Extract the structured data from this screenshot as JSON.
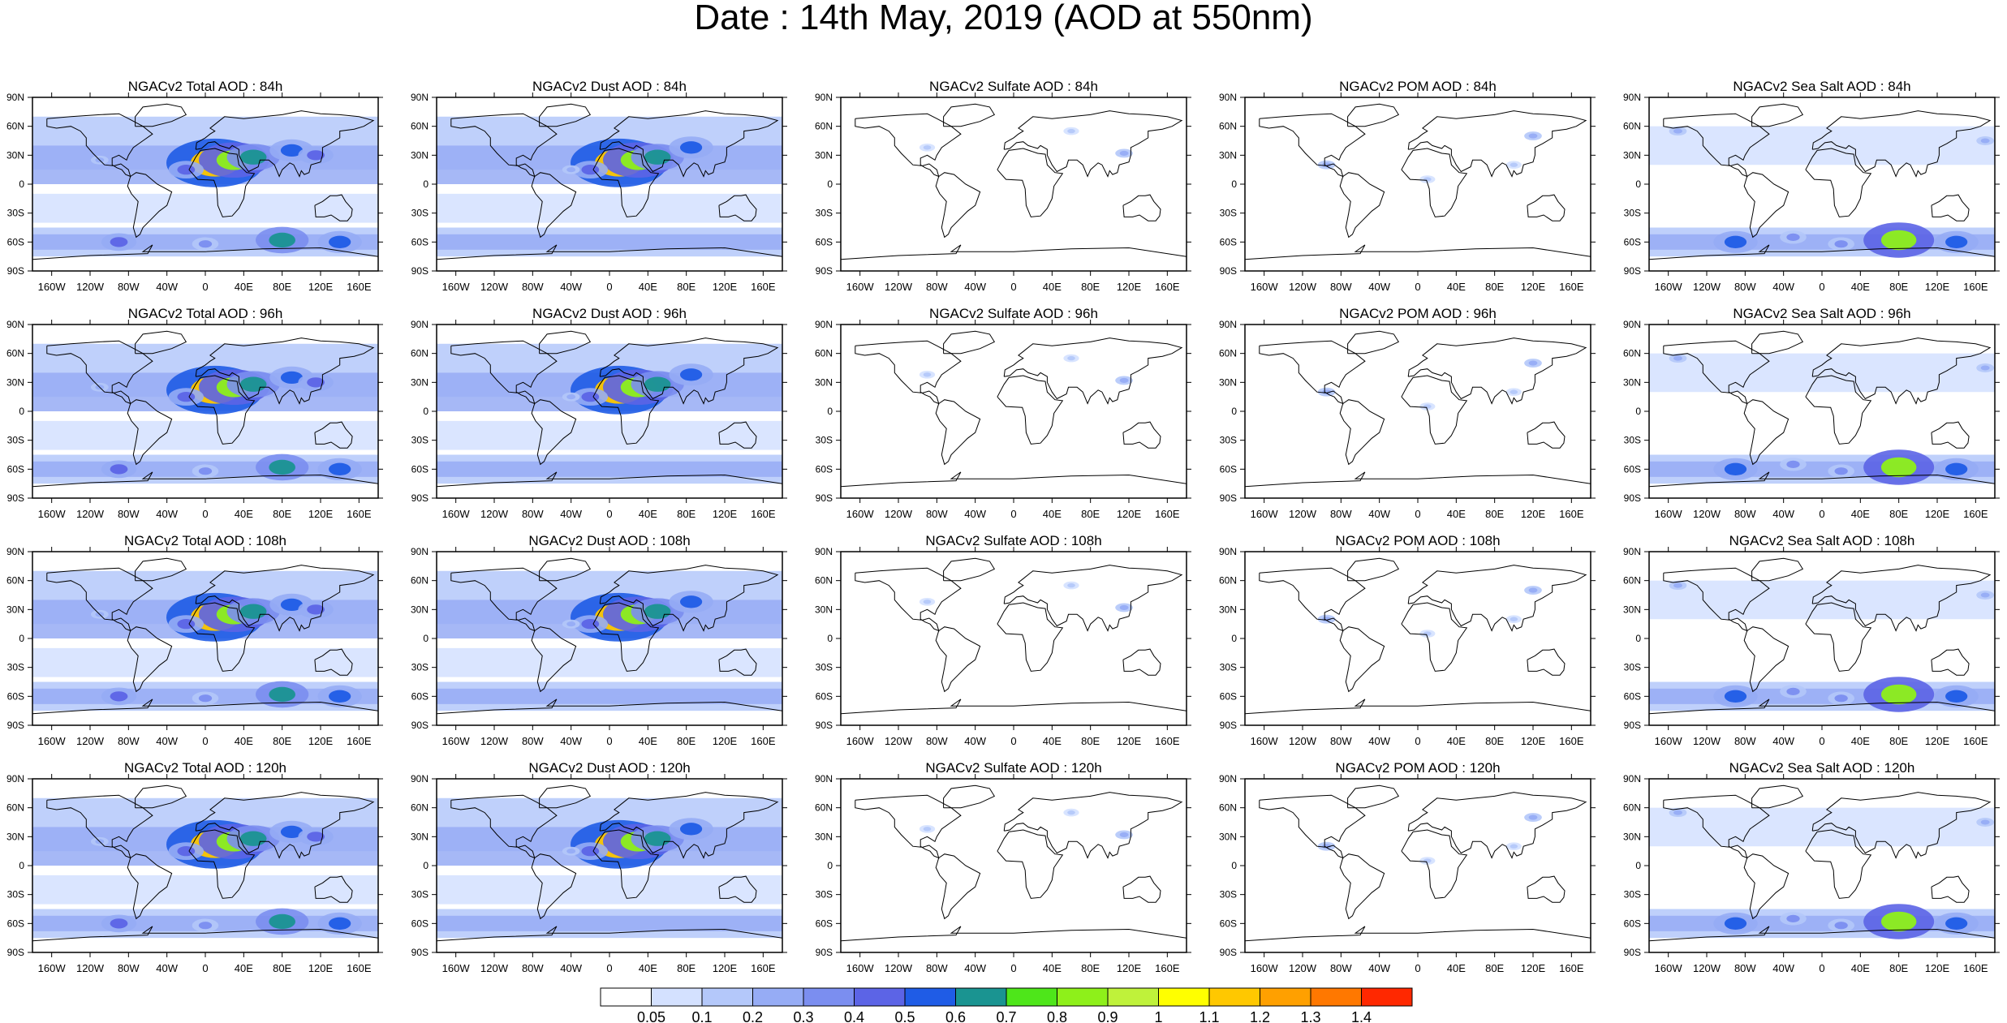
{
  "title": "Date : 14th May, 2019 (AOD at 550nm)",
  "x_ticks": [
    "160W",
    "120W",
    "80W",
    "40W",
    "0",
    "40E",
    "80E",
    "120E",
    "160E"
  ],
  "y_ticks": [
    "90N",
    "60N",
    "30N",
    "0",
    "30S",
    "60S",
    "90S"
  ],
  "colorbar": {
    "labels": [
      "0.05",
      "0.1",
      "0.2",
      "0.3",
      "0.4",
      "0.5",
      "0.6",
      "0.7",
      "0.8",
      "0.9",
      "1",
      "1.1",
      "1.2",
      "1.3",
      "1.4"
    ],
    "colors": [
      "#ffffff",
      "#d4e1ff",
      "#b4c8fa",
      "#96acf5",
      "#7b8ef0",
      "#5c64e6",
      "#1f5ce6",
      "#1a9491",
      "#4ee61a",
      "#8ef01a",
      "#bff23a",
      "#ffff00",
      "#ffc800",
      "#ffa000",
      "#ff7800",
      "#ff2800"
    ]
  },
  "chart_data": {
    "type": "heatmap",
    "variable": "AOD at 550nm",
    "rows": [
      "84h",
      "96h",
      "108h",
      "120h"
    ],
    "columns": [
      "Total",
      "Dust",
      "Sulfate",
      "POM",
      "Sea Salt"
    ],
    "panel_titles": [
      [
        "NGACv2 Total AOD : 84h",
        "NGACv2 Dust AOD : 84h",
        "NGACv2 Sulfate AOD : 84h",
        "NGACv2 POM AOD : 84h",
        "NGACv2 Sea Salt AOD : 84h"
      ],
      [
        "NGACv2 Total AOD : 96h",
        "NGACv2 Dust AOD : 96h",
        "NGACv2 Sulfate AOD : 96h",
        "NGACv2 POM AOD : 96h",
        "NGACv2 Sea Salt AOD : 96h"
      ],
      [
        "NGACv2 Total AOD : 108h",
        "NGACv2 Dust AOD : 108h",
        "NGACv2 Sulfate AOD : 108h",
        "NGACv2 POM AOD : 108h",
        "NGACv2 Sea Salt AOD : 108h"
      ],
      [
        "NGACv2 Total AOD : 120h",
        "NGACv2 Dust AOD : 120h",
        "NGACv2 Sulfate AOD : 120h",
        "NGACv2 POM AOD : 120h",
        "NGACv2 Sea Salt  AOD : 120h"
      ]
    ],
    "xlim": [
      -180,
      180
    ],
    "ylim": [
      -90,
      90
    ],
    "levels": [
      0.05,
      0.1,
      0.2,
      0.3,
      0.4,
      0.5,
      0.6,
      0.7,
      0.8,
      0.9,
      1,
      1.1,
      1.2,
      1.3,
      1.4
    ],
    "hotspots": {
      "Total": [
        [
          10,
          22,
          1.1
        ],
        [
          30,
          25,
          0.8
        ],
        [
          50,
          28,
          0.6
        ],
        [
          90,
          35,
          0.5
        ],
        [
          115,
          30,
          0.4
        ],
        [
          -20,
          15,
          0.4
        ],
        [
          -110,
          25,
          0.2
        ],
        [
          80,
          -58,
          0.6
        ],
        [
          140,
          -60,
          0.5
        ],
        [
          -90,
          -60,
          0.4
        ],
        [
          0,
          -62,
          0.3
        ]
      ],
      "Dust": [
        [
          10,
          22,
          1.1
        ],
        [
          30,
          25,
          0.8
        ],
        [
          50,
          28,
          0.6
        ],
        [
          85,
          38,
          0.5
        ],
        [
          -20,
          15,
          0.4
        ],
        [
          -40,
          15,
          0.2
        ]
      ],
      "Sulfate": [
        [
          115,
          32,
          0.2
        ],
        [
          -90,
          38,
          0.1
        ],
        [
          60,
          55,
          0.1
        ]
      ],
      "POM": [
        [
          -95,
          20,
          0.2
        ],
        [
          120,
          50,
          0.2
        ],
        [
          10,
          5,
          0.1
        ],
        [
          100,
          20,
          0.1
        ]
      ],
      "Sea Salt": [
        [
          80,
          -58,
          0.8
        ],
        [
          140,
          -60,
          0.5
        ],
        [
          -90,
          -60,
          0.5
        ],
        [
          20,
          -62,
          0.3
        ],
        [
          -30,
          -55,
          0.3
        ],
        [
          -150,
          55,
          0.2
        ],
        [
          170,
          45,
          0.2
        ]
      ]
    }
  }
}
